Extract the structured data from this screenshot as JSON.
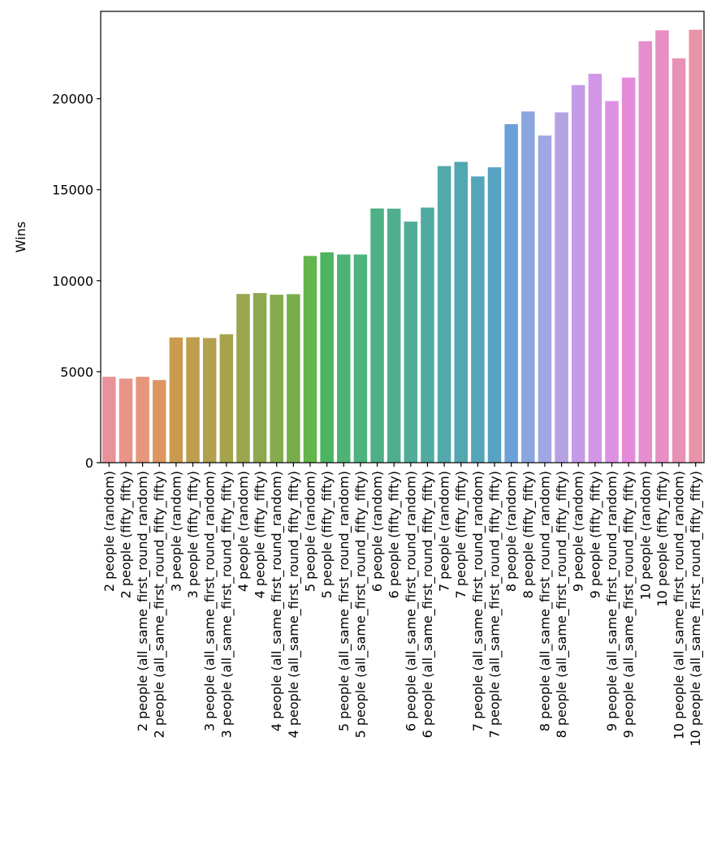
{
  "chart_data": {
    "type": "bar",
    "title": "",
    "xlabel": "",
    "ylabel": "Wins",
    "ylim": [
      0,
      24800
    ],
    "yticks": [
      0,
      5000,
      10000,
      15000,
      20000
    ],
    "grid": false,
    "categories": [
      "2 people (random)",
      "2 people (fifty_fifty)",
      "2 people (all_same_first_round_random)",
      "2 people (all_same_first_round_fifty_fifty)",
      "3 people (random)",
      "3 people (fifty_fifty)",
      "3 people (all_same_first_round_random)",
      "3 people (all_same_first_round_fifty_fifty)",
      "4 people (random)",
      "4 people (fifty_fifty)",
      "4 people (all_same_first_round_random)",
      "4 people (all_same_first_round_fifty_fifty)",
      "5 people (random)",
      "5 people (fifty_fifty)",
      "5 people (all_same_first_round_random)",
      "5 people (all_same_first_round_fifty_fifty)",
      "6 people (random)",
      "6 people (fifty_fifty)",
      "6 people (all_same_first_round_random)",
      "6 people (all_same_first_round_fifty_fifty)",
      "7 people (random)",
      "7 people (fifty_fifty)",
      "7 people (all_same_first_round_random)",
      "7 people (all_same_first_round_fifty_fifty)",
      "8 people (random)",
      "8 people (fifty_fifty)",
      "8 people (all_same_first_round_random)",
      "8 people (all_same_first_round_fifty_fifty)",
      "9 people (random)",
      "9 people (fifty_fifty)",
      "9 people (all_same_first_round_random)",
      "9 people (all_same_first_round_fifty_fifty)",
      "10 people (random)",
      "10 people (fifty_fifty)",
      "10 people (all_same_first_round_random)",
      "10 people (all_same_first_round_fifty_fifty)"
    ],
    "values": [
      4720,
      4620,
      4720,
      4540,
      6880,
      6890,
      6850,
      7060,
      9270,
      9320,
      9230,
      9260,
      11360,
      11560,
      11440,
      11440,
      13970,
      13960,
      13250,
      14020,
      16300,
      16530,
      15730,
      16230,
      18600,
      19300,
      17980,
      19250,
      20750,
      21370,
      19870,
      21160,
      23160,
      23760,
      22220,
      23790
    ],
    "colors": [
      "#E8939A",
      "#E89488",
      "#E6967B",
      "#DD9662",
      "#CB9A4E",
      "#BE9E4E",
      "#B2A04E",
      "#A6A34D",
      "#9AA64D",
      "#8EA84D",
      "#84AB4D",
      "#77AE4B",
      "#63B54C",
      "#4DB462",
      "#4DB373",
      "#4DB27E",
      "#4EB087",
      "#4FAE90",
      "#50AC98",
      "#51AAA0",
      "#52A9A9",
      "#53A7B1",
      "#55A5B9",
      "#57A3C3",
      "#6CA0D9",
      "#8BA6DF",
      "#A1A7E2",
      "#B5A2E3",
      "#C59BE5",
      "#D395E6",
      "#DE90E4",
      "#E48ADB",
      "#E68DCF",
      "#E88FC3",
      "#E891B6",
      "#E893A8"
    ]
  }
}
